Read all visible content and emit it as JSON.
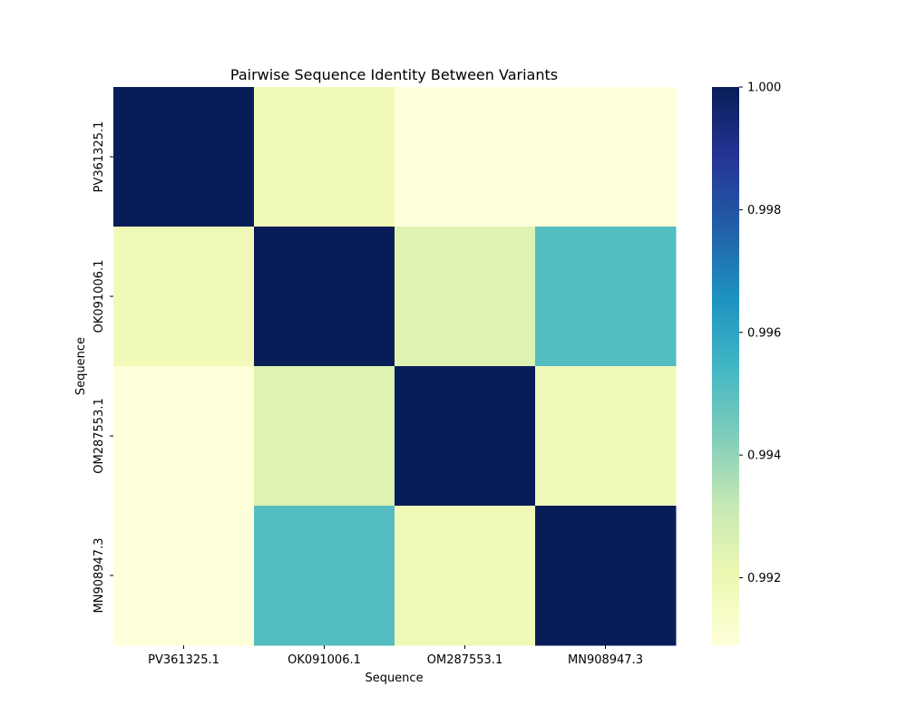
{
  "chart_data": {
    "type": "heatmap",
    "title": "Pairwise Sequence Identity Between Variants",
    "xlabel": "Sequence",
    "ylabel": "Sequence",
    "x_categories": [
      "PV361325.1",
      "OK091006.1",
      "OM287553.1",
      "MN908947.3"
    ],
    "y_categories": [
      "PV361325.1",
      "OK091006.1",
      "OM287553.1",
      "MN908947.3"
    ],
    "values": [
      [
        1.0,
        0.9918,
        0.9909,
        0.9909
      ],
      [
        0.9918,
        1.0,
        0.9925,
        0.9951
      ],
      [
        0.9909,
        0.9925,
        1.0,
        0.9918
      ],
      [
        0.9909,
        0.9951,
        0.9918,
        1.0
      ]
    ],
    "colormap": "YlGnBu",
    "colorbar": {
      "min": 0.9909,
      "max": 1.0,
      "ticks": [
        {
          "value": 0.992,
          "label": "0.992"
        },
        {
          "value": 0.994,
          "label": "0.994"
        },
        {
          "value": 0.996,
          "label": "0.996"
        },
        {
          "value": 0.998,
          "label": "0.998"
        },
        {
          "value": 1.0,
          "label": "1.000"
        }
      ]
    }
  }
}
